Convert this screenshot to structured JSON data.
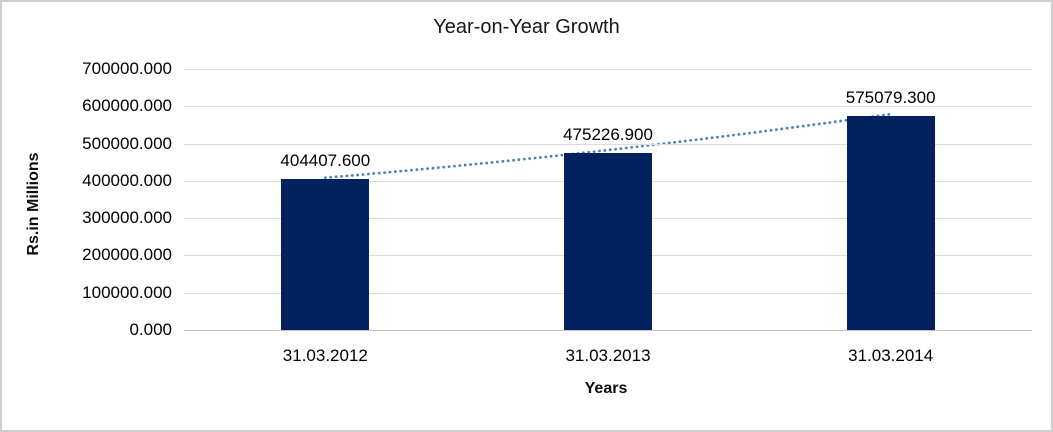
{
  "chart_data": {
    "type": "bar",
    "title": "Year-on-Year Growth",
    "xlabel": "Years",
    "ylabel": "Rs.in Millions",
    "categories": [
      "31.03.2012",
      "31.03.2013",
      "31.03.2014"
    ],
    "values": [
      404407.6,
      475226.9,
      575079.3
    ],
    "value_labels": [
      "404407.600",
      "475226.900",
      "575079.300"
    ],
    "ylim": [
      0,
      700000
    ],
    "ytick_step": 100000,
    "ytick_values": [
      0,
      100000,
      200000,
      300000,
      400000,
      500000,
      600000,
      700000
    ],
    "ytick_labels": [
      "0.000",
      "100000.000",
      "200000.000",
      "300000.000",
      "400000.000",
      "500000.000",
      "600000.000",
      "700000.000"
    ],
    "grid": true,
    "legend": "none",
    "trendline": {
      "style": "dotted",
      "color": "#4a7ebb"
    },
    "colors": {
      "bar": "#02215e",
      "gridline": "#dbdbdb",
      "axis_line": "#c4c4c4",
      "title_text": "#171717",
      "label_text": "#000000",
      "frame_border": "#cfcdcd",
      "background": "#ffffff"
    }
  }
}
